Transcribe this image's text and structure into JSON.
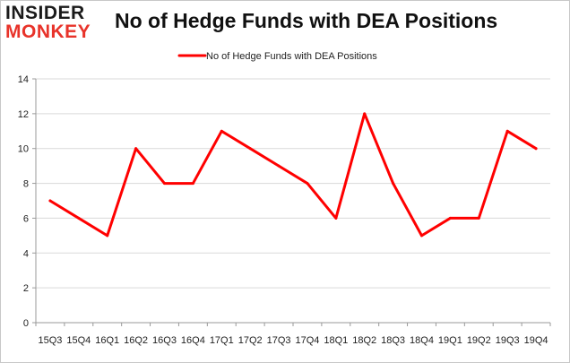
{
  "logo": {
    "line1": "INSIDER",
    "line2": "MONKEY"
  },
  "chart_data": {
    "type": "line",
    "title": "No of Hedge Funds with DEA Positions",
    "xlabel": "",
    "ylabel": "",
    "categories": [
      "15Q3",
      "15Q4",
      "16Q1",
      "16Q2",
      "16Q3",
      "16Q4",
      "17Q1",
      "17Q2",
      "17Q3",
      "17Q4",
      "18Q1",
      "18Q2",
      "18Q3",
      "18Q4",
      "19Q1",
      "19Q2",
      "19Q3",
      "19Q4"
    ],
    "series": [
      {
        "name": "No of Hedge Funds with DEA Positions",
        "color": "#ff0000",
        "values": [
          7,
          6,
          5,
          10,
          8,
          8,
          11,
          10,
          9,
          8,
          6,
          12,
          8,
          5,
          6,
          6,
          11,
          10
        ]
      }
    ],
    "ylim": [
      0,
      14
    ],
    "yticks": [
      "0",
      "2",
      "4",
      "6",
      "8",
      "10",
      "12",
      "14"
    ],
    "grid": true,
    "legend": "top"
  }
}
